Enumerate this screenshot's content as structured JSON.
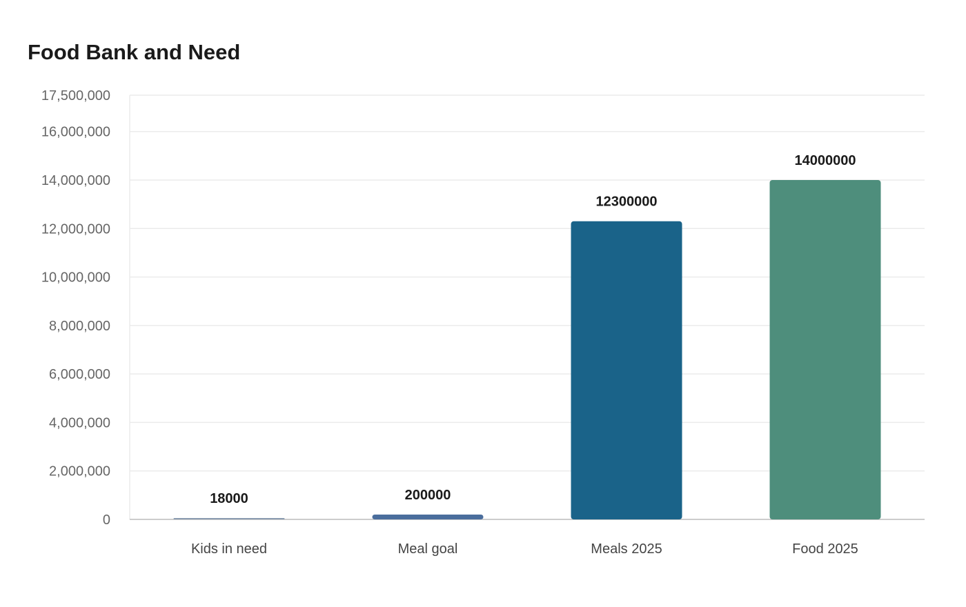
{
  "chart_data": {
    "type": "bar",
    "title": "Food Bank and Need",
    "xlabel": "",
    "ylabel": "",
    "categories": [
      "Kids in need",
      "Meal goal",
      "Meals 2025",
      "Food 2025"
    ],
    "values": [
      18000,
      200000,
      12300000,
      14000000
    ],
    "data_labels": [
      "18000",
      "200000",
      "12300000",
      "14000000"
    ],
    "bar_colors": [
      "#8a9bb0",
      "#4a6d9c",
      "#1a6389",
      "#4e8e7c"
    ],
    "ylim": [
      0,
      17500000
    ],
    "yticks": [
      0,
      2000000,
      4000000,
      6000000,
      8000000,
      10000000,
      12000000,
      14000000,
      16000000,
      17500000
    ],
    "ytick_labels": [
      "0",
      "2,000,000",
      "4,000,000",
      "6,000,000",
      "8,000,000",
      "10,000,000",
      "12,000,000",
      "14,000,000",
      "16,000,000",
      "17,500,000"
    ],
    "grid": true,
    "legend": "none",
    "gridline_color": "#ebebeb",
    "axis_color": "#cccccc"
  }
}
